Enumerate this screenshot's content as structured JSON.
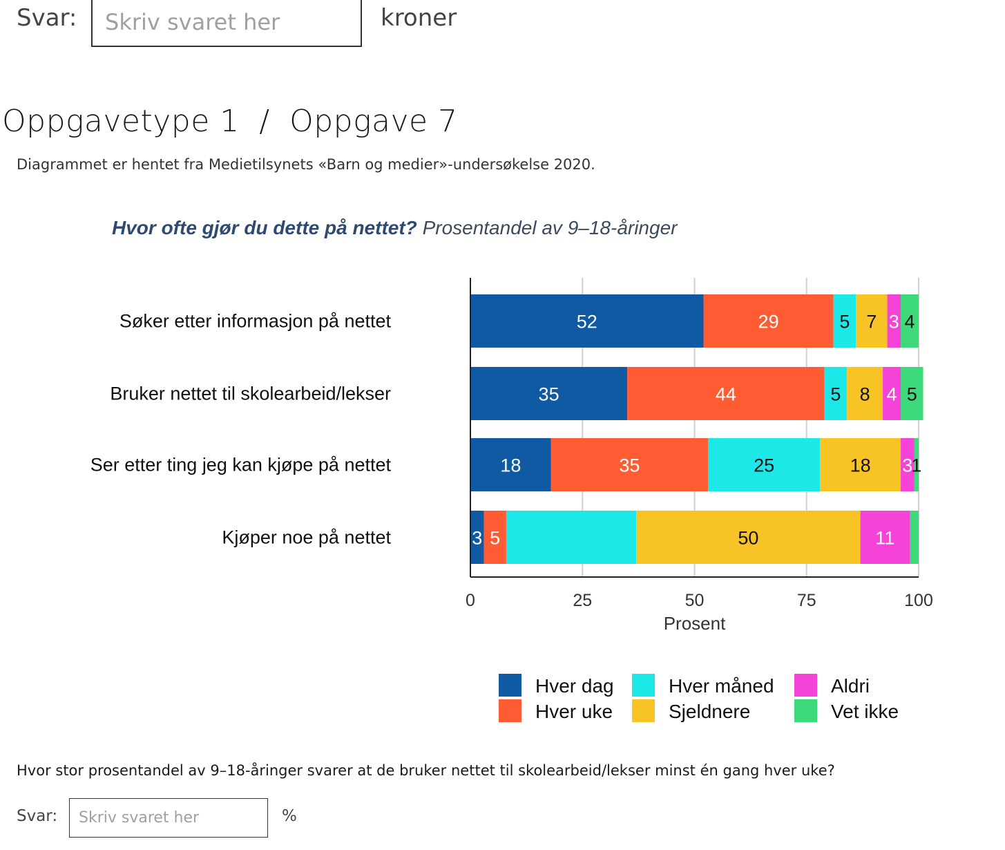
{
  "top_answer": {
    "label": "Svar:",
    "placeholder": "Skriv svaret her",
    "unit": "kroner"
  },
  "heading": {
    "type": "Oppgavetype 1",
    "separator": "/",
    "task": "Oppgave 7"
  },
  "source_text": "Diagrammet er hentet fra Medietilsynets «Barn og medier»-undersøkelse 2020.",
  "chart_data": {
    "type": "bar",
    "orientation": "horizontal",
    "stacked": true,
    "title_bold": "Hvor ofte gjør du dette på nettet?",
    "title_rest": "Prosentandel av 9–18-åringer",
    "categories": [
      "Søker etter informasjon på nettet",
      "Bruker nettet til skolearbeid/lekser",
      "Ser etter ting jeg kan kjøpe på nettet",
      "Kjøper noe på nettet"
    ],
    "series": [
      {
        "name": "Hver dag",
        "color": "#0f5aa3",
        "label_color": "#ffffff",
        "values": [
          52,
          35,
          18,
          3
        ]
      },
      {
        "name": "Hver uke",
        "color": "#ff5c33",
        "label_color": "#ffffff",
        "values": [
          29,
          44,
          35,
          5
        ]
      },
      {
        "name": "Hver måned",
        "color": "#1de8e8",
        "label_color": "#111111",
        "values": [
          5,
          5,
          25,
          29
        ]
      },
      {
        "name": "Sjeldnere",
        "color": "#f7c325",
        "label_color": "#111111",
        "values": [
          7,
          8,
          18,
          50
        ]
      },
      {
        "name": "Aldri",
        "color": "#f542d7",
        "label_color": "#ffffff",
        "values": [
          3,
          4,
          3,
          11
        ]
      },
      {
        "name": "Vet ikke",
        "color": "#3dd97b",
        "label_color": "#111111",
        "values": [
          4,
          5,
          1,
          2
        ]
      }
    ],
    "hidden_labels": [
      [
        3,
        2
      ],
      [
        3,
        5
      ]
    ],
    "xlim": [
      0,
      100
    ],
    "xticks": [
      0,
      25,
      50,
      75,
      100
    ],
    "xlabel": "Prosent",
    "legend_placement": "bottom",
    "grid": true
  },
  "question": "Hvor stor prosentandel av 9–18-åringer svarer at de bruker nettet til skolearbeid/lekser minst én gang hver uke?",
  "bottom_answer": {
    "label": "Svar:",
    "placeholder": "Skriv svaret her",
    "unit": "%"
  }
}
